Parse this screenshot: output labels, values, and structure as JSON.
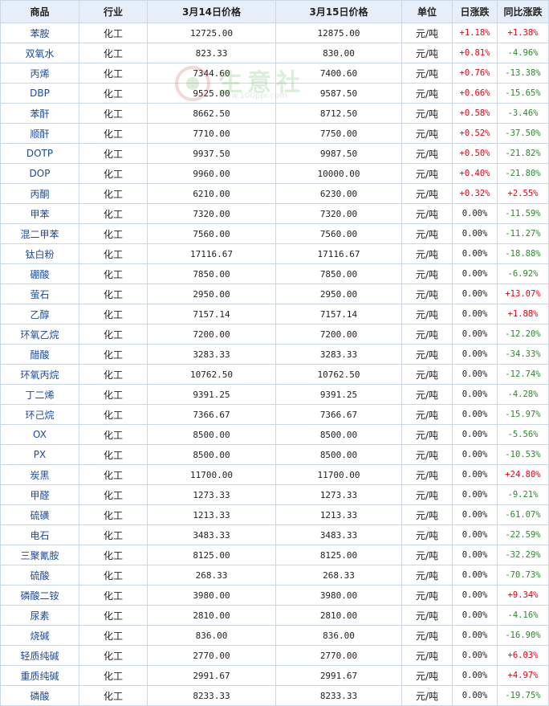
{
  "header": {
    "product": "商品",
    "industry": "行业",
    "price1": "3月14日价格",
    "price2": "3月15日价格",
    "unit": "单位",
    "daily_change": "日涨跌",
    "yoy_change": "同比涨跌"
  },
  "watermark": {
    "text": "生意社",
    "url": "www.100ppi.com"
  },
  "colors": {
    "up": "#e60012",
    "down": "#2a8a2a",
    "header_bg": "#e6eff9",
    "border": "#c9d7e6",
    "name": "#1b4a9b"
  },
  "rows": [
    {
      "name": "苯胺",
      "industry": "化工",
      "p1": "12725.00",
      "p2": "12875.00",
      "unit": "元/吨",
      "day": "+1.18%",
      "yoy": "+1.38%"
    },
    {
      "name": "双氧水",
      "industry": "化工",
      "p1": "823.33",
      "p2": "830.00",
      "unit": "元/吨",
      "day": "+0.81%",
      "yoy": "-4.96%"
    },
    {
      "name": "丙烯",
      "industry": "化工",
      "p1": "7344.60",
      "p2": "7400.60",
      "unit": "元/吨",
      "day": "+0.76%",
      "yoy": "-13.38%"
    },
    {
      "name": "DBP",
      "industry": "化工",
      "p1": "9525.00",
      "p2": "9587.50",
      "unit": "元/吨",
      "day": "+0.66%",
      "yoy": "-15.65%"
    },
    {
      "name": "苯酐",
      "industry": "化工",
      "p1": "8662.50",
      "p2": "8712.50",
      "unit": "元/吨",
      "day": "+0.58%",
      "yoy": "-3.46%"
    },
    {
      "name": "顺酐",
      "industry": "化工",
      "p1": "7710.00",
      "p2": "7750.00",
      "unit": "元/吨",
      "day": "+0.52%",
      "yoy": "-37.50%"
    },
    {
      "name": "DOTP",
      "industry": "化工",
      "p1": "9937.50",
      "p2": "9987.50",
      "unit": "元/吨",
      "day": "+0.50%",
      "yoy": "-21.82%"
    },
    {
      "name": "DOP",
      "industry": "化工",
      "p1": "9960.00",
      "p2": "10000.00",
      "unit": "元/吨",
      "day": "+0.40%",
      "yoy": "-21.80%"
    },
    {
      "name": "丙酮",
      "industry": "化工",
      "p1": "6210.00",
      "p2": "6230.00",
      "unit": "元/吨",
      "day": "+0.32%",
      "yoy": "+2.55%"
    },
    {
      "name": "甲苯",
      "industry": "化工",
      "p1": "7320.00",
      "p2": "7320.00",
      "unit": "元/吨",
      "day": "0.00%",
      "yoy": "-11.59%"
    },
    {
      "name": "混二甲苯",
      "industry": "化工",
      "p1": "7560.00",
      "p2": "7560.00",
      "unit": "元/吨",
      "day": "0.00%",
      "yoy": "-11.27%"
    },
    {
      "name": "钛白粉",
      "industry": "化工",
      "p1": "17116.67",
      "p2": "17116.67",
      "unit": "元/吨",
      "day": "0.00%",
      "yoy": "-18.88%"
    },
    {
      "name": "硼酸",
      "industry": "化工",
      "p1": "7850.00",
      "p2": "7850.00",
      "unit": "元/吨",
      "day": "0.00%",
      "yoy": "-6.92%"
    },
    {
      "name": "萤石",
      "industry": "化工",
      "p1": "2950.00",
      "p2": "2950.00",
      "unit": "元/吨",
      "day": "0.00%",
      "yoy": "+13.07%"
    },
    {
      "name": "乙醇",
      "industry": "化工",
      "p1": "7157.14",
      "p2": "7157.14",
      "unit": "元/吨",
      "day": "0.00%",
      "yoy": "+1.88%"
    },
    {
      "name": "环氧乙烷",
      "industry": "化工",
      "p1": "7200.00",
      "p2": "7200.00",
      "unit": "元/吨",
      "day": "0.00%",
      "yoy": "-12.20%"
    },
    {
      "name": "醋酸",
      "industry": "化工",
      "p1": "3283.33",
      "p2": "3283.33",
      "unit": "元/吨",
      "day": "0.00%",
      "yoy": "-34.33%"
    },
    {
      "name": "环氧丙烷",
      "industry": "化工",
      "p1": "10762.50",
      "p2": "10762.50",
      "unit": "元/吨",
      "day": "0.00%",
      "yoy": "-12.74%"
    },
    {
      "name": "丁二烯",
      "industry": "化工",
      "p1": "9391.25",
      "p2": "9391.25",
      "unit": "元/吨",
      "day": "0.00%",
      "yoy": "-4.28%"
    },
    {
      "name": "环己烷",
      "industry": "化工",
      "p1": "7366.67",
      "p2": "7366.67",
      "unit": "元/吨",
      "day": "0.00%",
      "yoy": "-15.97%"
    },
    {
      "name": "OX",
      "industry": "化工",
      "p1": "8500.00",
      "p2": "8500.00",
      "unit": "元/吨",
      "day": "0.00%",
      "yoy": "-5.56%"
    },
    {
      "name": "PX",
      "industry": "化工",
      "p1": "8500.00",
      "p2": "8500.00",
      "unit": "元/吨",
      "day": "0.00%",
      "yoy": "-10.53%"
    },
    {
      "name": "炭黑",
      "industry": "化工",
      "p1": "11700.00",
      "p2": "11700.00",
      "unit": "元/吨",
      "day": "0.00%",
      "yoy": "+24.80%"
    },
    {
      "name": "甲醛",
      "industry": "化工",
      "p1": "1273.33",
      "p2": "1273.33",
      "unit": "元/吨",
      "day": "0.00%",
      "yoy": "-9.21%"
    },
    {
      "name": "硫磺",
      "industry": "化工",
      "p1": "1213.33",
      "p2": "1213.33",
      "unit": "元/吨",
      "day": "0.00%",
      "yoy": "-61.07%"
    },
    {
      "name": "电石",
      "industry": "化工",
      "p1": "3483.33",
      "p2": "3483.33",
      "unit": "元/吨",
      "day": "0.00%",
      "yoy": "-22.59%"
    },
    {
      "name": "三聚氰胺",
      "industry": "化工",
      "p1": "8125.00",
      "p2": "8125.00",
      "unit": "元/吨",
      "day": "0.00%",
      "yoy": "-32.29%"
    },
    {
      "name": "硫酸",
      "industry": "化工",
      "p1": "268.33",
      "p2": "268.33",
      "unit": "元/吨",
      "day": "0.00%",
      "yoy": "-70.73%"
    },
    {
      "name": "磷酸二铵",
      "industry": "化工",
      "p1": "3980.00",
      "p2": "3980.00",
      "unit": "元/吨",
      "day": "0.00%",
      "yoy": "+9.34%"
    },
    {
      "name": "尿素",
      "industry": "化工",
      "p1": "2810.00",
      "p2": "2810.00",
      "unit": "元/吨",
      "day": "0.00%",
      "yoy": "-4.16%"
    },
    {
      "name": "烧碱",
      "industry": "化工",
      "p1": "836.00",
      "p2": "836.00",
      "unit": "元/吨",
      "day": "0.00%",
      "yoy": "-16.90%"
    },
    {
      "name": "轻质纯碱",
      "industry": "化工",
      "p1": "2770.00",
      "p2": "2770.00",
      "unit": "元/吨",
      "day": "0.00%",
      "yoy": "+6.03%"
    },
    {
      "name": "重质纯碱",
      "industry": "化工",
      "p1": "2991.67",
      "p2": "2991.67",
      "unit": "元/吨",
      "day": "0.00%",
      "yoy": "+4.97%"
    },
    {
      "name": "磷酸",
      "industry": "化工",
      "p1": "8233.33",
      "p2": "8233.33",
      "unit": "元/吨",
      "day": "0.00%",
      "yoy": "-19.75%"
    }
  ]
}
